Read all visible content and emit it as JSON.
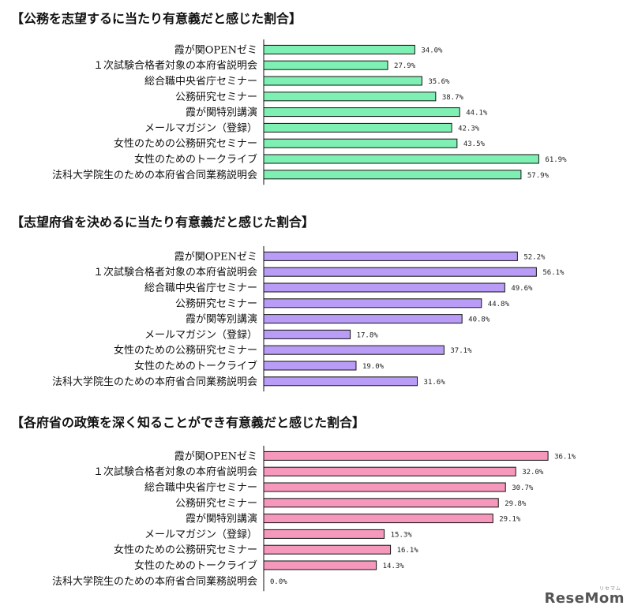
{
  "chart_data": [
    {
      "type": "bar",
      "orientation": "horizontal",
      "title": "【公務を志望するに当たり有意義だと感じた割合】",
      "bar_color": "#7ff0b4",
      "categories": [
        "霞が関OPENゼミ",
        "１次試験合格者対象の本府省説明会",
        "総合職中央省庁セミナー",
        "公務研究セミナー",
        "霞が関特別講演",
        "メールマガジン（登録）",
        "女性のための公務研究セミナー",
        "女性のためのトークライブ",
        "法科大学院生のための本府省合同業務説明会"
      ],
      "values": [
        34.0,
        27.9,
        35.6,
        38.7,
        44.1,
        42.3,
        43.5,
        61.9,
        57.9
      ],
      "value_labels": [
        "34.0%",
        "27.9%",
        "35.6%",
        "38.7%",
        "44.1%",
        "42.3%",
        "43.5%",
        "61.9%",
        "57.9%"
      ],
      "xlim": [
        0,
        70
      ]
    },
    {
      "type": "bar",
      "orientation": "horizontal",
      "title": "【志望府省を決めるに当たり有意義だと感じた割合】",
      "bar_color": "#b99cf5",
      "categories": [
        "霞が関OPENゼミ",
        "１次試験合格者対象の本府省説明会",
        "総合職中央省庁セミナー",
        "公務研究セミナー",
        "霞が関等別講演",
        "メールマガジン（登録）",
        "女性のための公務研究セミナー",
        "女性のためのトークライブ",
        "法科大学院生のための本府省合同業務説明会"
      ],
      "values": [
        52.2,
        56.1,
        49.6,
        44.8,
        40.8,
        17.8,
        37.1,
        19.0,
        31.6
      ],
      "value_labels": [
        "52.2%",
        "56.1%",
        "49.6%",
        "44.8%",
        "40.8%",
        "17.8%",
        "37.1%",
        "19.0%",
        "31.6%"
      ],
      "xlim": [
        0,
        64
      ]
    },
    {
      "type": "bar",
      "orientation": "horizontal",
      "title": "【各府省の政策を深く知ることができ有意義だと感じた割合】",
      "bar_color": "#f598bc",
      "categories": [
        "霞が関OPENゼミ",
        "１次試験合格者対象の本府省説明会",
        "総合職中央省庁セミナー",
        "公務研究セミナー",
        "霞が関特別講演",
        "メールマガジン（登録）",
        "女性のための公務研究セミナー",
        "女性のためのトークライブ",
        "法科大学院生のための本府省合同業務説明会"
      ],
      "values": [
        36.1,
        32.0,
        30.7,
        29.8,
        29.1,
        15.3,
        16.1,
        14.3,
        0.0
      ],
      "value_labels": [
        "36.1%",
        "32.0%",
        "30.7%",
        "29.8%",
        "29.1%",
        "15.3%",
        "16.1%",
        "14.3%",
        "0.0%"
      ],
      "xlim": [
        0,
        39.5
      ]
    }
  ],
  "logo": {
    "text": "ReseMom",
    "sub": "リセマム"
  }
}
